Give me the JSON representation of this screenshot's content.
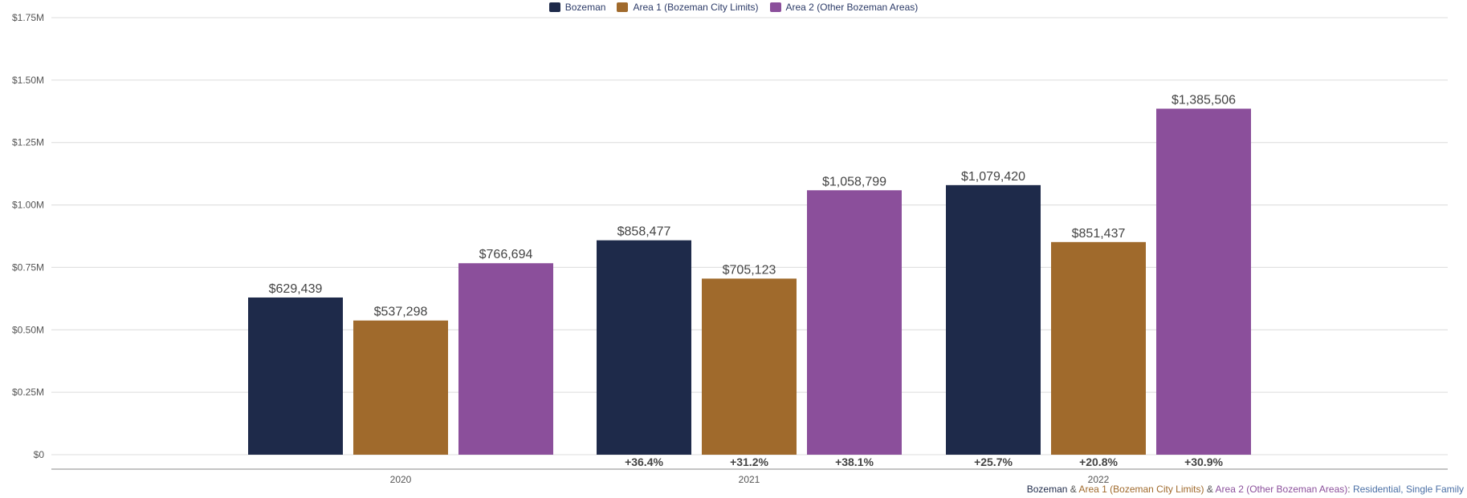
{
  "chart_data": {
    "type": "bar",
    "categories": [
      "2020",
      "2021",
      "2022"
    ],
    "series": [
      {
        "name": "Bozeman",
        "color": "#1e2a4a",
        "values": [
          629439,
          858477,
          1079420
        ],
        "value_labels": [
          "$629,439",
          "$858,477",
          "$1,079,420"
        ],
        "change_labels": [
          "",
          "+36.4%",
          "+25.7%"
        ]
      },
      {
        "name": "Area 1 (Bozeman City Limits)",
        "color": "#a06a2c",
        "values": [
          537298,
          705123,
          851437
        ],
        "value_labels": [
          "$537,298",
          "$705,123",
          "$851,437"
        ],
        "change_labels": [
          "",
          "+31.2%",
          "+20.8%"
        ]
      },
      {
        "name": "Area 2 (Other Bozeman Areas)",
        "color": "#8b4f9b",
        "values": [
          766694,
          1058799,
          1385506
        ],
        "value_labels": [
          "$766,694",
          "$1,058,799",
          "$1,385,506"
        ],
        "change_labels": [
          "",
          "+38.1%",
          "+30.9%"
        ]
      }
    ],
    "ylim": [
      0,
      1750000
    ],
    "yticks": [
      0,
      250000,
      500000,
      750000,
      1000000,
      1250000,
      1500000,
      1750000
    ],
    "ytick_labels": [
      "$0",
      "$0.25M",
      "$0.50M",
      "$0.75M",
      "$1.00M",
      "$1.25M",
      "$1.50M",
      "$1.75M"
    ],
    "grid": true,
    "legend_position": "top-center"
  },
  "caption": {
    "part1": "Bozeman",
    "sep1": " & ",
    "part2": "Area 1 (Bozeman City Limits)",
    "sep2": " & ",
    "part3": "Area 2 (Other Bozeman Areas)",
    "sep3": ": ",
    "part4": "Residential, Single Family"
  }
}
